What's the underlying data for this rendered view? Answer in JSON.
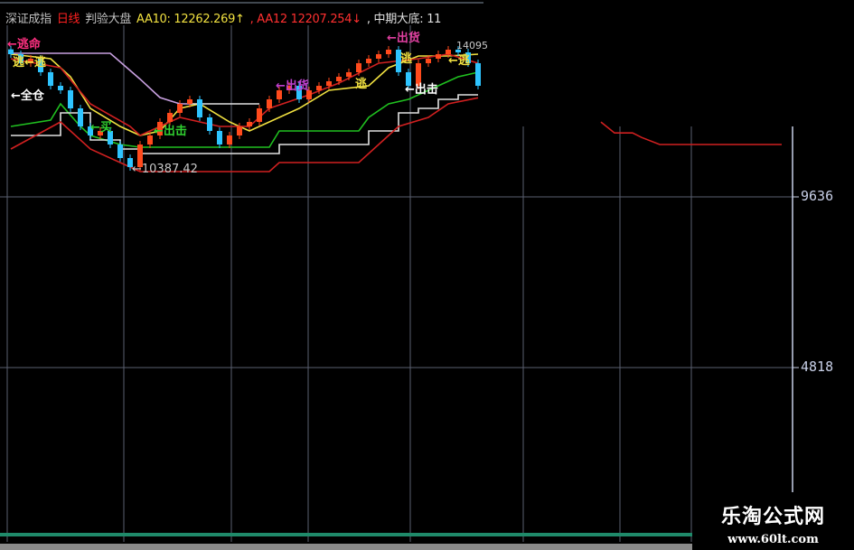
{
  "header": {
    "index_name": "深证成指",
    "period": "日线",
    "indicator": "判验大盘",
    "aa10": "AA10: 12262.269↑",
    "aa12": ", AA12  12207.254↓",
    "mid_bottom": ", 中期大底: 11"
  },
  "annotations": {
    "escape_life": "←逃命",
    "escape_1": "逃←逃",
    "full_position": "←全仓",
    "buy": "←买",
    "attack_1": "←出击",
    "low_value": "←10387.42",
    "sell_1": "←出货",
    "escape_2": "逃",
    "sell_2": "←出货",
    "escape_3": "逃",
    "attack_2": "←出击",
    "high_value": "14095",
    "escape_4": "←逃"
  },
  "watermark": {
    "title": "乐淘公式网",
    "url": "www.60lt.com"
  },
  "colors": {
    "up": "#ff4a1c",
    "down": "#2ec4ff",
    "ma_yellow": "#f0e040",
    "ma_red": "#d02020",
    "green": "#20c020",
    "white": "#e0e0e0",
    "purple": "#c8a0e0",
    "grid": "#5a6070"
  },
  "chart_data": {
    "type": "candlestick",
    "y_ticks": [
      9636,
      4818
    ],
    "ylim": [
      -1300,
      15200
    ],
    "candles_close": [
      13663,
      13409,
      13536,
      13154,
      12771,
      12644,
      12134,
      11624,
      11369,
      11497,
      11114,
      10732,
      10477,
      11114,
      11369,
      11752,
      12007,
      12261,
      12389,
      11879,
      11497,
      11114,
      11369,
      11624,
      11752,
      12134,
      12389,
      12644,
      12771,
      12389,
      12644,
      12771,
      12899,
      13027,
      13154,
      13409,
      13536,
      13663,
      13791,
      13154,
      12771,
      13409,
      13536,
      13663,
      13791,
      13714,
      13409,
      12771
    ],
    "first_open": 13800,
    "series": [
      {
        "key": "ma_yellow",
        "x": [
          0,
          4,
          6,
          8,
          11,
          13,
          15,
          17,
          19,
          22,
          24,
          26,
          29,
          32,
          36,
          38,
          41,
          44,
          47
        ],
        "y": [
          13663,
          13536,
          13027,
          12134,
          11624,
          11369,
          11497,
          12134,
          12261,
          11752,
          11497,
          11752,
          12134,
          12644,
          12771,
          13281,
          13613,
          13613,
          13663
        ]
      },
      {
        "key": "ma_red",
        "x": [
          0,
          5,
          8,
          12,
          13,
          17,
          21,
          24,
          26,
          30,
          33,
          37,
          41,
          44,
          47
        ],
        "y": [
          13536,
          13281,
          12261,
          11624,
          11369,
          11879,
          11624,
          11624,
          12134,
          12517,
          12849,
          13409,
          13536,
          13663,
          13409
        ]
      },
      {
        "key": "green",
        "x": [
          0,
          4,
          5,
          7,
          8,
          11,
          13,
          26,
          27,
          35,
          36,
          38,
          40,
          43,
          45,
          47
        ],
        "y": [
          11624,
          11803,
          12261,
          11624,
          11369,
          11114,
          11037,
          11037,
          11497,
          11497,
          11879,
          12261,
          12389,
          12771,
          13027,
          13154
        ]
      },
      {
        "key": "white",
        "x": [
          0,
          5,
          8,
          11,
          13,
          26,
          27,
          35,
          36,
          39,
          41,
          43,
          45,
          47
        ],
        "y": [
          11369,
          12006,
          11242,
          10987,
          10860,
          10860,
          11114,
          11114,
          11497,
          12006,
          12134,
          12389,
          12517,
          12517
        ],
        "step": true
      },
      {
        "key": "ma_red_low",
        "x": [
          0,
          5,
          8,
          11,
          13,
          26,
          27,
          35,
          37,
          39,
          42,
          44,
          47
        ],
        "y": [
          10987,
          11752,
          10987,
          10605,
          10350,
          10350,
          10605,
          10605,
          11114,
          11624,
          11879,
          12261,
          12432
        ]
      },
      {
        "key": "purple",
        "x": [
          0,
          10,
          13,
          15,
          17,
          18
        ],
        "y": [
          13689,
          13689,
          12960,
          12440,
          12261,
          12261
        ]
      },
      {
        "key": "white_flat",
        "x": [
          18,
          25
        ],
        "y": [
          12261,
          12261
        ]
      }
    ],
    "future_line": {
      "y": [
        11750,
        11440,
        11440,
        11314,
        11114,
        11114
      ]
    }
  }
}
